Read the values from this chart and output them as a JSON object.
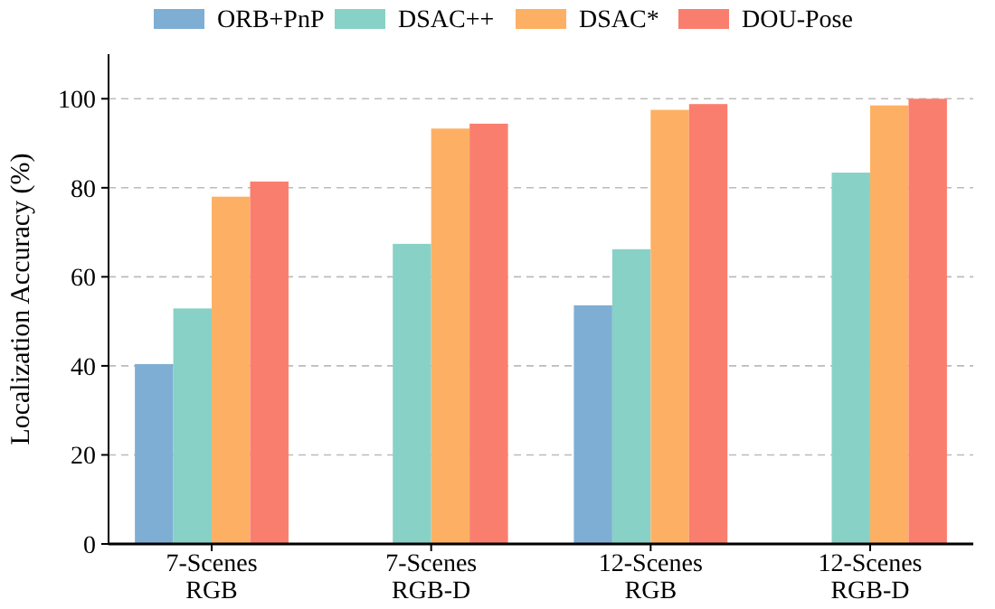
{
  "chart_data": {
    "type": "bar",
    "ylabel": "Localization Accuracy (%)",
    "categories": [
      "7-Scenes\nRGB",
      "7-Scenes\nRGB-D",
      "12-Scenes\nRGB",
      "12-Scenes\nRGB-D"
    ],
    "series": [
      {
        "name": "ORB+PnP",
        "color": "#7eaed3",
        "values": [
          40.4,
          null,
          53.6,
          null
        ]
      },
      {
        "name": "DSAC++",
        "color": "#88d1c6",
        "values": [
          52.9,
          67.4,
          66.2,
          83.4
        ]
      },
      {
        "name": "DSAC*",
        "color": "#fdb063",
        "values": [
          78.0,
          93.3,
          97.5,
          98.5
        ]
      },
      {
        "name": "DOU-Pose",
        "color": "#fa7e6e",
        "values": [
          81.4,
          94.4,
          98.8,
          100
        ]
      }
    ],
    "ylim": [
      0,
      110
    ],
    "yticks": [
      0,
      20,
      40,
      60,
      80,
      100
    ],
    "grid": "y",
    "legend": "top"
  }
}
